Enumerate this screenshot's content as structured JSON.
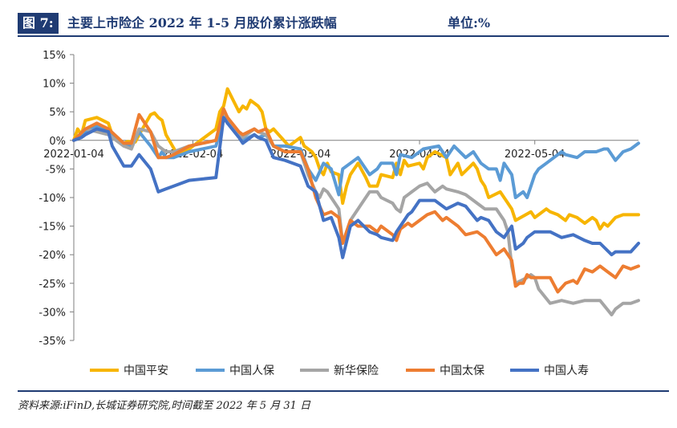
{
  "header": {
    "figure_label": "图 7:",
    "title": "主要上市险企 2022 年 1-5 月股价累计涨跌幅",
    "unit": "单位:%"
  },
  "footer": {
    "source": "资料来源:iFinD,长城证券研究院,时间截至 2022 年 5 月 31 日"
  },
  "chart_data": {
    "type": "line",
    "xlabel": "",
    "ylabel": "",
    "ylim": [
      -35,
      15
    ],
    "yticks": [
      15,
      10,
      5,
      0,
      -5,
      -10,
      -15,
      -20,
      -25,
      -30,
      -35
    ],
    "ytick_labels": [
      "15%",
      "10%",
      "5%",
      "0%",
      "-5%",
      "-10%",
      "-15%",
      "-20%",
      "-25%",
      "-30%",
      "-35%"
    ],
    "x_tick_labels": [
      "2022-01-04",
      "2022-02-04",
      "2022-03-04",
      "2022-04-04",
      "2022-05-04"
    ],
    "x_tick_days": [
      0,
      31,
      59,
      90,
      120
    ],
    "x_range_days": [
      0,
      147
    ],
    "legend_position": "bottom",
    "series": [
      {
        "name": "中国平安",
        "color": "#f7b500",
        "x": [
          0,
          1,
          2,
          3,
          6,
          9,
          10,
          13,
          14,
          16,
          17,
          20,
          21,
          22,
          23,
          24,
          27,
          30,
          37,
          38,
          39,
          40,
          43,
          44,
          45,
          46,
          47,
          48,
          49,
          50,
          51,
          52,
          56,
          59,
          60,
          62,
          63,
          64,
          65,
          66,
          67,
          69,
          70,
          71,
          72,
          74,
          76,
          77,
          79,
          80,
          83,
          84,
          85,
          86,
          87,
          90,
          91,
          92,
          94,
          97,
          98,
          100,
          101,
          104,
          105,
          106,
          107,
          108,
          111,
          112,
          114,
          115,
          119,
          120,
          121,
          123,
          124,
          126,
          128,
          129,
          131,
          133,
          135,
          136,
          137,
          138,
          139,
          141,
          143,
          145,
          147
        ],
        "y": [
          0,
          2,
          1,
          3.5,
          4,
          3,
          1,
          -0.5,
          -0.2,
          -0.3,
          1,
          4.5,
          4.8,
          4,
          3.5,
          1,
          -2.5,
          -1.5,
          2,
          5,
          6,
          9,
          5,
          6,
          5.5,
          7,
          6.5,
          6,
          5,
          2,
          1.5,
          2,
          -1,
          0.5,
          -1,
          -2,
          -3,
          -5,
          -6,
          -4,
          -5.5,
          -6,
          -11,
          -8,
          -6,
          -4,
          -6.5,
          -8,
          -8,
          -6,
          -6.5,
          -4,
          -6,
          -3.5,
          -4.5,
          -4,
          -5,
          -3,
          -2,
          -3,
          -6,
          -4,
          -6,
          -4,
          -5,
          -7,
          -8,
          -10,
          -9,
          -10,
          -12,
          -14,
          -12.5,
          -13.5,
          -13,
          -12,
          -12.5,
          -13,
          -14,
          -13,
          -13.5,
          -14.5,
          -13.5,
          -14,
          -15.5,
          -14.5,
          -15,
          -13.5,
          -13,
          -13,
          -13
        ]
      },
      {
        "name": "中国人保",
        "color": "#5b9bd5",
        "x": [
          0,
          2,
          3,
          6,
          9,
          13,
          15,
          17,
          20,
          22,
          23,
          24,
          26,
          30,
          37,
          39,
          40,
          43,
          44,
          47,
          48,
          50,
          52,
          55,
          59,
          61,
          63,
          65,
          67,
          69,
          70,
          72,
          74,
          77,
          79,
          80,
          83,
          84,
          85,
          88,
          91,
          95,
          96,
          97,
          99,
          102,
          104,
          106,
          108,
          110,
          111,
          112,
          114,
          115,
          117,
          118,
          119,
          120,
          121,
          123,
          125,
          127,
          128,
          131,
          133,
          136,
          138,
          139,
          141,
          143,
          145,
          147
        ],
        "y": [
          0,
          1,
          1.5,
          2.5,
          1.5,
          -0.5,
          -1,
          1.5,
          -1,
          -3,
          -2,
          -3,
          -3,
          -2,
          -1,
          4,
          3,
          1,
          0,
          1,
          0.5,
          1,
          -1,
          -1,
          -1.5,
          -5,
          -7,
          -4,
          -5,
          -9.5,
          -5,
          -4,
          -3,
          -6,
          -5,
          -4,
          -4,
          -6,
          -2.5,
          -3,
          -1.5,
          -1,
          -2,
          -3,
          -1,
          -3,
          -2,
          -4,
          -5,
          -5,
          -7,
          -4,
          -6,
          -10,
          -9,
          -10,
          -8,
          -6,
          -5,
          -4,
          -3,
          -2,
          -2.5,
          -3,
          -2,
          -2,
          -1.5,
          -1.5,
          -3.5,
          -2,
          -1.5,
          -0.5
        ]
      },
      {
        "name": "新华保险",
        "color": "#a5a5a5",
        "x": [
          0,
          3,
          6,
          9,
          13,
          15,
          17,
          20,
          22,
          24,
          26,
          30,
          37,
          39,
          40,
          43,
          44,
          47,
          48,
          50,
          52,
          55,
          59,
          61,
          63,
          64,
          65,
          66,
          67,
          69,
          70,
          72,
          74,
          77,
          79,
          80,
          83,
          84,
          85,
          86,
          88,
          90,
          92,
          94,
          96,
          97,
          100,
          102,
          105,
          107,
          110,
          112,
          113,
          114,
          115,
          118,
          119,
          120,
          121,
          124,
          127,
          130,
          133,
          135,
          137,
          140,
          141,
          143,
          145,
          147
        ],
        "y": [
          0,
          2,
          1.5,
          1,
          -1,
          -1.5,
          2,
          1.5,
          -1,
          -2,
          -2,
          -1,
          0,
          5,
          4,
          1,
          0.5,
          2,
          1.5,
          1,
          -1,
          -2,
          -2,
          -6,
          -9,
          -10,
          -8.5,
          -9,
          -10,
          -12,
          -18,
          -14,
          -12,
          -9,
          -9,
          -10,
          -11,
          -12,
          -12.5,
          -10,
          -9,
          -8,
          -7.5,
          -9,
          -8,
          -8.5,
          -9,
          -9.5,
          -11,
          -12,
          -12,
          -14,
          -16,
          -22,
          -25,
          -24,
          -23.5,
          -24,
          -26,
          -28.5,
          -28,
          -28.5,
          -28,
          -28,
          -28,
          -30.5,
          -29.5,
          -28.5,
          -28.5,
          -28
        ]
      },
      {
        "name": "中国太保",
        "color": "#ed7d31",
        "x": [
          0,
          3,
          6,
          9,
          13,
          15,
          17,
          20,
          22,
          24,
          26,
          30,
          37,
          39,
          40,
          43,
          44,
          47,
          48,
          50,
          52,
          55,
          59,
          61,
          63,
          65,
          67,
          69,
          70,
          72,
          74,
          77,
          79,
          80,
          83,
          84,
          85,
          86,
          87,
          88,
          90,
          92,
          94,
          96,
          97,
          100,
          102,
          105,
          107,
          108,
          110,
          112,
          114,
          115,
          116,
          117,
          118,
          119,
          120,
          121,
          124,
          126,
          128,
          130,
          131,
          133,
          135,
          137,
          139,
          141,
          143,
          145,
          147
        ],
        "y": [
          0,
          2,
          3,
          2,
          -0.5,
          -0.5,
          4.5,
          1.5,
          -3,
          -3,
          -2.5,
          -1,
          0,
          5.5,
          4,
          1.5,
          1,
          2,
          1.5,
          2,
          -1,
          -2,
          -2,
          -5,
          -10,
          -13,
          -12.5,
          -13.5,
          -18,
          -14,
          -15,
          -15,
          -16,
          -15,
          -16.5,
          -17.5,
          -15.5,
          -15,
          -14.5,
          -15,
          -14,
          -13,
          -12.5,
          -14,
          -13.5,
          -15,
          -16.5,
          -16,
          -17,
          -18,
          -20,
          -19,
          -21,
          -25.5,
          -25,
          -25,
          -23.5,
          -24,
          -24,
          -24,
          -24,
          -26.5,
          -25,
          -24.5,
          -25,
          -22.5,
          -23,
          -22,
          -23,
          -24,
          -22,
          -22.5,
          -22
        ]
      },
      {
        "name": "中国人寿",
        "color": "#4472c4",
        "x": [
          0,
          2,
          3,
          6,
          9,
          10,
          13,
          15,
          17,
          20,
          22,
          24,
          26,
          30,
          37,
          39,
          40,
          43,
          44,
          47,
          48,
          50,
          52,
          55,
          59,
          61,
          63,
          65,
          67,
          69,
          70,
          72,
          74,
          77,
          79,
          80,
          83,
          84,
          85,
          86,
          87,
          88,
          90,
          92,
          94,
          97,
          100,
          102,
          105,
          106,
          108,
          110,
          112,
          114,
          115,
          117,
          118,
          120,
          121,
          124,
          127,
          130,
          133,
          135,
          137,
          140,
          141,
          143,
          145,
          147
        ],
        "y": [
          0,
          0.5,
          1,
          2,
          1.5,
          -1,
          -4.5,
          -4.5,
          -2.5,
          -5,
          -9,
          -8.5,
          -8,
          -7,
          -6.5,
          4,
          3,
          0.5,
          -0.5,
          1,
          0.5,
          0,
          -3,
          -3.5,
          -4.5,
          -8,
          -9,
          -14,
          -13.5,
          -17,
          -20.5,
          -15,
          -14,
          -16,
          -16.5,
          -17,
          -17.5,
          -16,
          -15,
          -14,
          -13,
          -12.5,
          -10.5,
          -10.5,
          -10.5,
          -12,
          -11,
          -11.5,
          -14,
          -13.5,
          -14,
          -16,
          -17,
          -15,
          -19,
          -18,
          -17,
          -16,
          -16,
          -16,
          -17,
          -16.5,
          -17.5,
          -18,
          -18,
          -20,
          -19.5,
          -19.5,
          -19.5,
          -18
        ]
      }
    ]
  }
}
